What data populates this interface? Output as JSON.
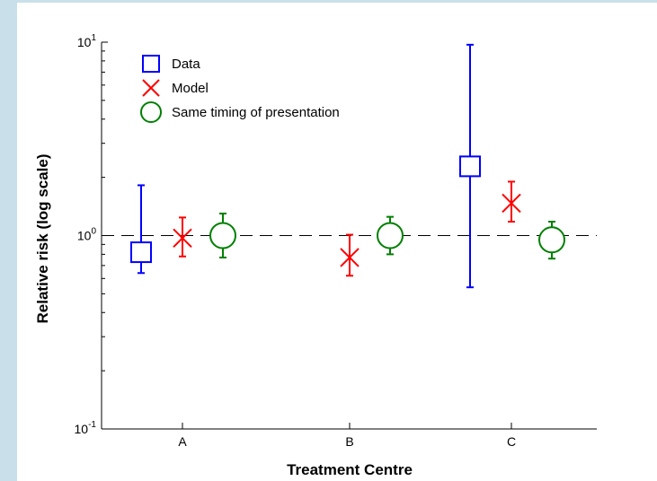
{
  "chart_data": {
    "type": "scatter",
    "xlabel": "Treatment Centre",
    "ylabel": "Relative risk (log scale)",
    "yscale": "log",
    "ylim": [
      0.1,
      10
    ],
    "y_ticks": [
      {
        "value": 10,
        "base": "10",
        "exp": "1"
      },
      {
        "value": 1,
        "base": "10",
        "exp": "0"
      },
      {
        "value": 0.1,
        "base": "10",
        "exp": "-1"
      }
    ],
    "categories": [
      "A",
      "B",
      "C"
    ],
    "reference_line": {
      "y": 1,
      "style": "dashed"
    },
    "legend_position": "top-left",
    "grid": false,
    "series": [
      {
        "name": "Data",
        "marker": "square",
        "color": "#0000ff",
        "points": [
          {
            "category": "A",
            "y": 0.82,
            "low": 0.64,
            "high": 1.82
          },
          {
            "category": "C",
            "y": 2.28,
            "low": 0.54,
            "high": 9.7
          }
        ]
      },
      {
        "name": "Model",
        "marker": "x",
        "color": "#ff0000",
        "points": [
          {
            "category": "A",
            "y": 0.97,
            "low": 0.78,
            "high": 1.24
          },
          {
            "category": "B",
            "y": 0.77,
            "low": 0.62,
            "high": 1.01
          },
          {
            "category": "C",
            "y": 1.47,
            "low": 1.18,
            "high": 1.9
          }
        ]
      },
      {
        "name": "Same timing of presentation",
        "marker": "circle",
        "color": "#008000",
        "points": [
          {
            "category": "A",
            "y": 1.0,
            "low": 0.77,
            "high": 1.3
          },
          {
            "category": "B",
            "y": 1.0,
            "low": 0.8,
            "high": 1.25
          },
          {
            "category": "C",
            "y": 0.95,
            "low": 0.76,
            "high": 1.18
          }
        ]
      }
    ]
  }
}
